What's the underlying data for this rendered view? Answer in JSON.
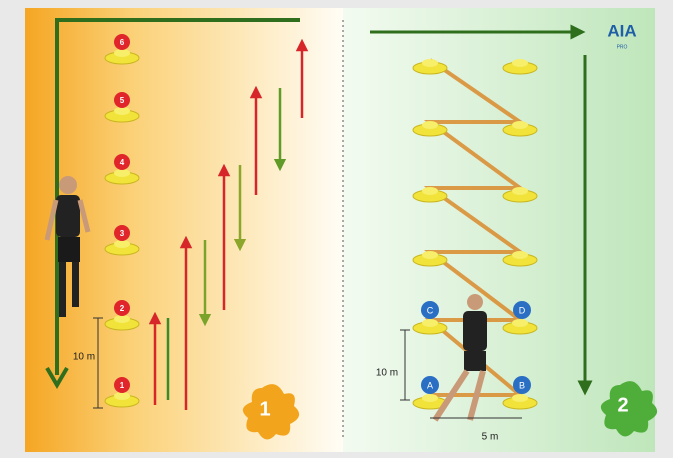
{
  "panel_1": {
    "cones": [
      "6",
      "5",
      "4",
      "3",
      "2",
      "1"
    ],
    "distance_label": "10 m",
    "badge": "1"
  },
  "panel_2": {
    "cone_labels": [
      "C",
      "D",
      "A",
      "B"
    ],
    "vertical_distance_label": "10 m",
    "horizontal_distance_label": "5 m",
    "badge": "2"
  },
  "logo": {
    "title": "AIA",
    "subtitle": "PRO"
  }
}
